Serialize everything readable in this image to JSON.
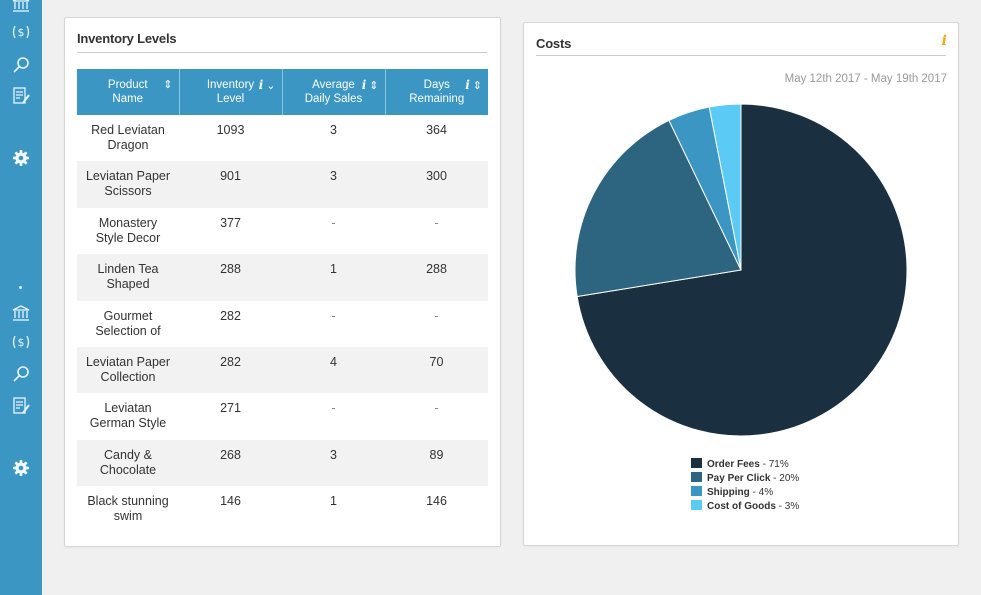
{
  "sidebar": {
    "icons": [
      "bank-icon",
      "money-icon",
      "search-icon",
      "edit-icon",
      "gear-icon",
      "bank-icon",
      "money-icon",
      "search-icon",
      "edit-icon",
      "gear-icon"
    ]
  },
  "inventory": {
    "title": "Inventory Levels",
    "columns": [
      "Product Name",
      "Inventory Level",
      "Average Daily Sales",
      "Days Remaining"
    ],
    "rows": [
      {
        "product": "Red Leviatan Dragon",
        "inventory": "1093",
        "avg_sales": "3",
        "days": "364"
      },
      {
        "product": "Leviatan Paper Scissors",
        "inventory": "901",
        "avg_sales": "3",
        "days": "300"
      },
      {
        "product": "Monastery Style Decor",
        "inventory": "377",
        "avg_sales": "-",
        "days": "-"
      },
      {
        "product": "Linden Tea Shaped",
        "inventory": "288",
        "avg_sales": "1",
        "days": "288"
      },
      {
        "product": "Gourmet Selection of",
        "inventory": "282",
        "avg_sales": "-",
        "days": "-"
      },
      {
        "product": "Leviatan Paper Collection",
        "inventory": "282",
        "avg_sales": "4",
        "days": "70"
      },
      {
        "product": "Leviatan German Style",
        "inventory": "271",
        "avg_sales": "-",
        "days": "-"
      },
      {
        "product": "Candy & Chocolate",
        "inventory": "268",
        "avg_sales": "3",
        "days": "89"
      },
      {
        "product": "Black stunning swim",
        "inventory": "146",
        "avg_sales": "1",
        "days": "146"
      }
    ]
  },
  "costs": {
    "title": "Costs",
    "info_glyph": "i",
    "date_range": "May 12th 2017 - May 19th 2017"
  },
  "chart_data": {
    "type": "pie",
    "categories": [
      "Order Fees",
      "Pay Per Click",
      "Shipping",
      "Cost of Goods"
    ],
    "values": [
      71,
      20,
      4,
      3
    ],
    "value_labels": [
      "71%",
      "20%",
      "4%",
      "3%"
    ],
    "colors": [
      "#1a3040",
      "#2d6580",
      "#3b96c3",
      "#5bcbf5"
    ],
    "legend_position": "bottom"
  }
}
